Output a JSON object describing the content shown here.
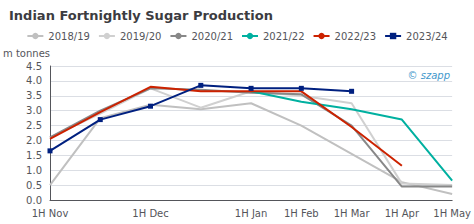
{
  "chart_data": {
    "type": "line",
    "title": "Indian Fortnightly Sugar Production",
    "ylabel": "m tonnes",
    "annotation": "© szapp",
    "categories": [
      "1H Nov",
      null,
      "1H Dec",
      null,
      "1H Jan",
      "1H Feb",
      "1H Mar",
      "1H Apr",
      "1H May"
    ],
    "ylim": [
      0.0,
      4.5
    ],
    "yticks": [
      {
        "value": 0.0,
        "label": "0.0"
      },
      0.5,
      {
        "value": 1.0,
        "label": "1.0"
      },
      1.5,
      {
        "value": 2.0,
        "label": "2.0"
      },
      2.5,
      {
        "value": 3.0,
        "label": "3.0"
      },
      3.5,
      {
        "value": 4.0,
        "label": "4.0"
      },
      4.5
    ],
    "grid": true,
    "series": [
      {
        "name": "2018/19",
        "color": "#c0c0c0",
        "values": [
          0.5,
          2.75,
          3.2,
          3.05,
          3.25,
          2.5,
          1.55,
          0.6,
          0.2
        ]
      },
      {
        "name": "2019/20",
        "color": "#d0d0d0",
        "values": [
          2.1,
          2.9,
          3.75,
          3.1,
          3.65,
          3.5,
          3.25,
          0.55,
          0.5
        ]
      },
      {
        "name": "2020/21",
        "color": "#888888",
        "values": [
          2.1,
          3.0,
          3.75,
          3.7,
          3.6,
          3.55,
          2.5,
          0.45,
          0.45
        ]
      },
      {
        "name": "2021/22",
        "color": "#00b0a0",
        "values": [
          null,
          null,
          null,
          null,
          3.65,
          3.3,
          3.05,
          2.7,
          0.65
        ]
      },
      {
        "name": "2022/23",
        "color": "#cc2200",
        "values": [
          2.05,
          2.95,
          3.8,
          3.65,
          3.65,
          3.65,
          2.45,
          1.15,
          null
        ]
      },
      {
        "name": "2023/24",
        "color": "#002080",
        "marker": "square",
        "values": [
          1.65,
          2.7,
          3.15,
          3.85,
          3.75,
          3.75,
          3.65,
          null,
          null
        ]
      }
    ]
  }
}
